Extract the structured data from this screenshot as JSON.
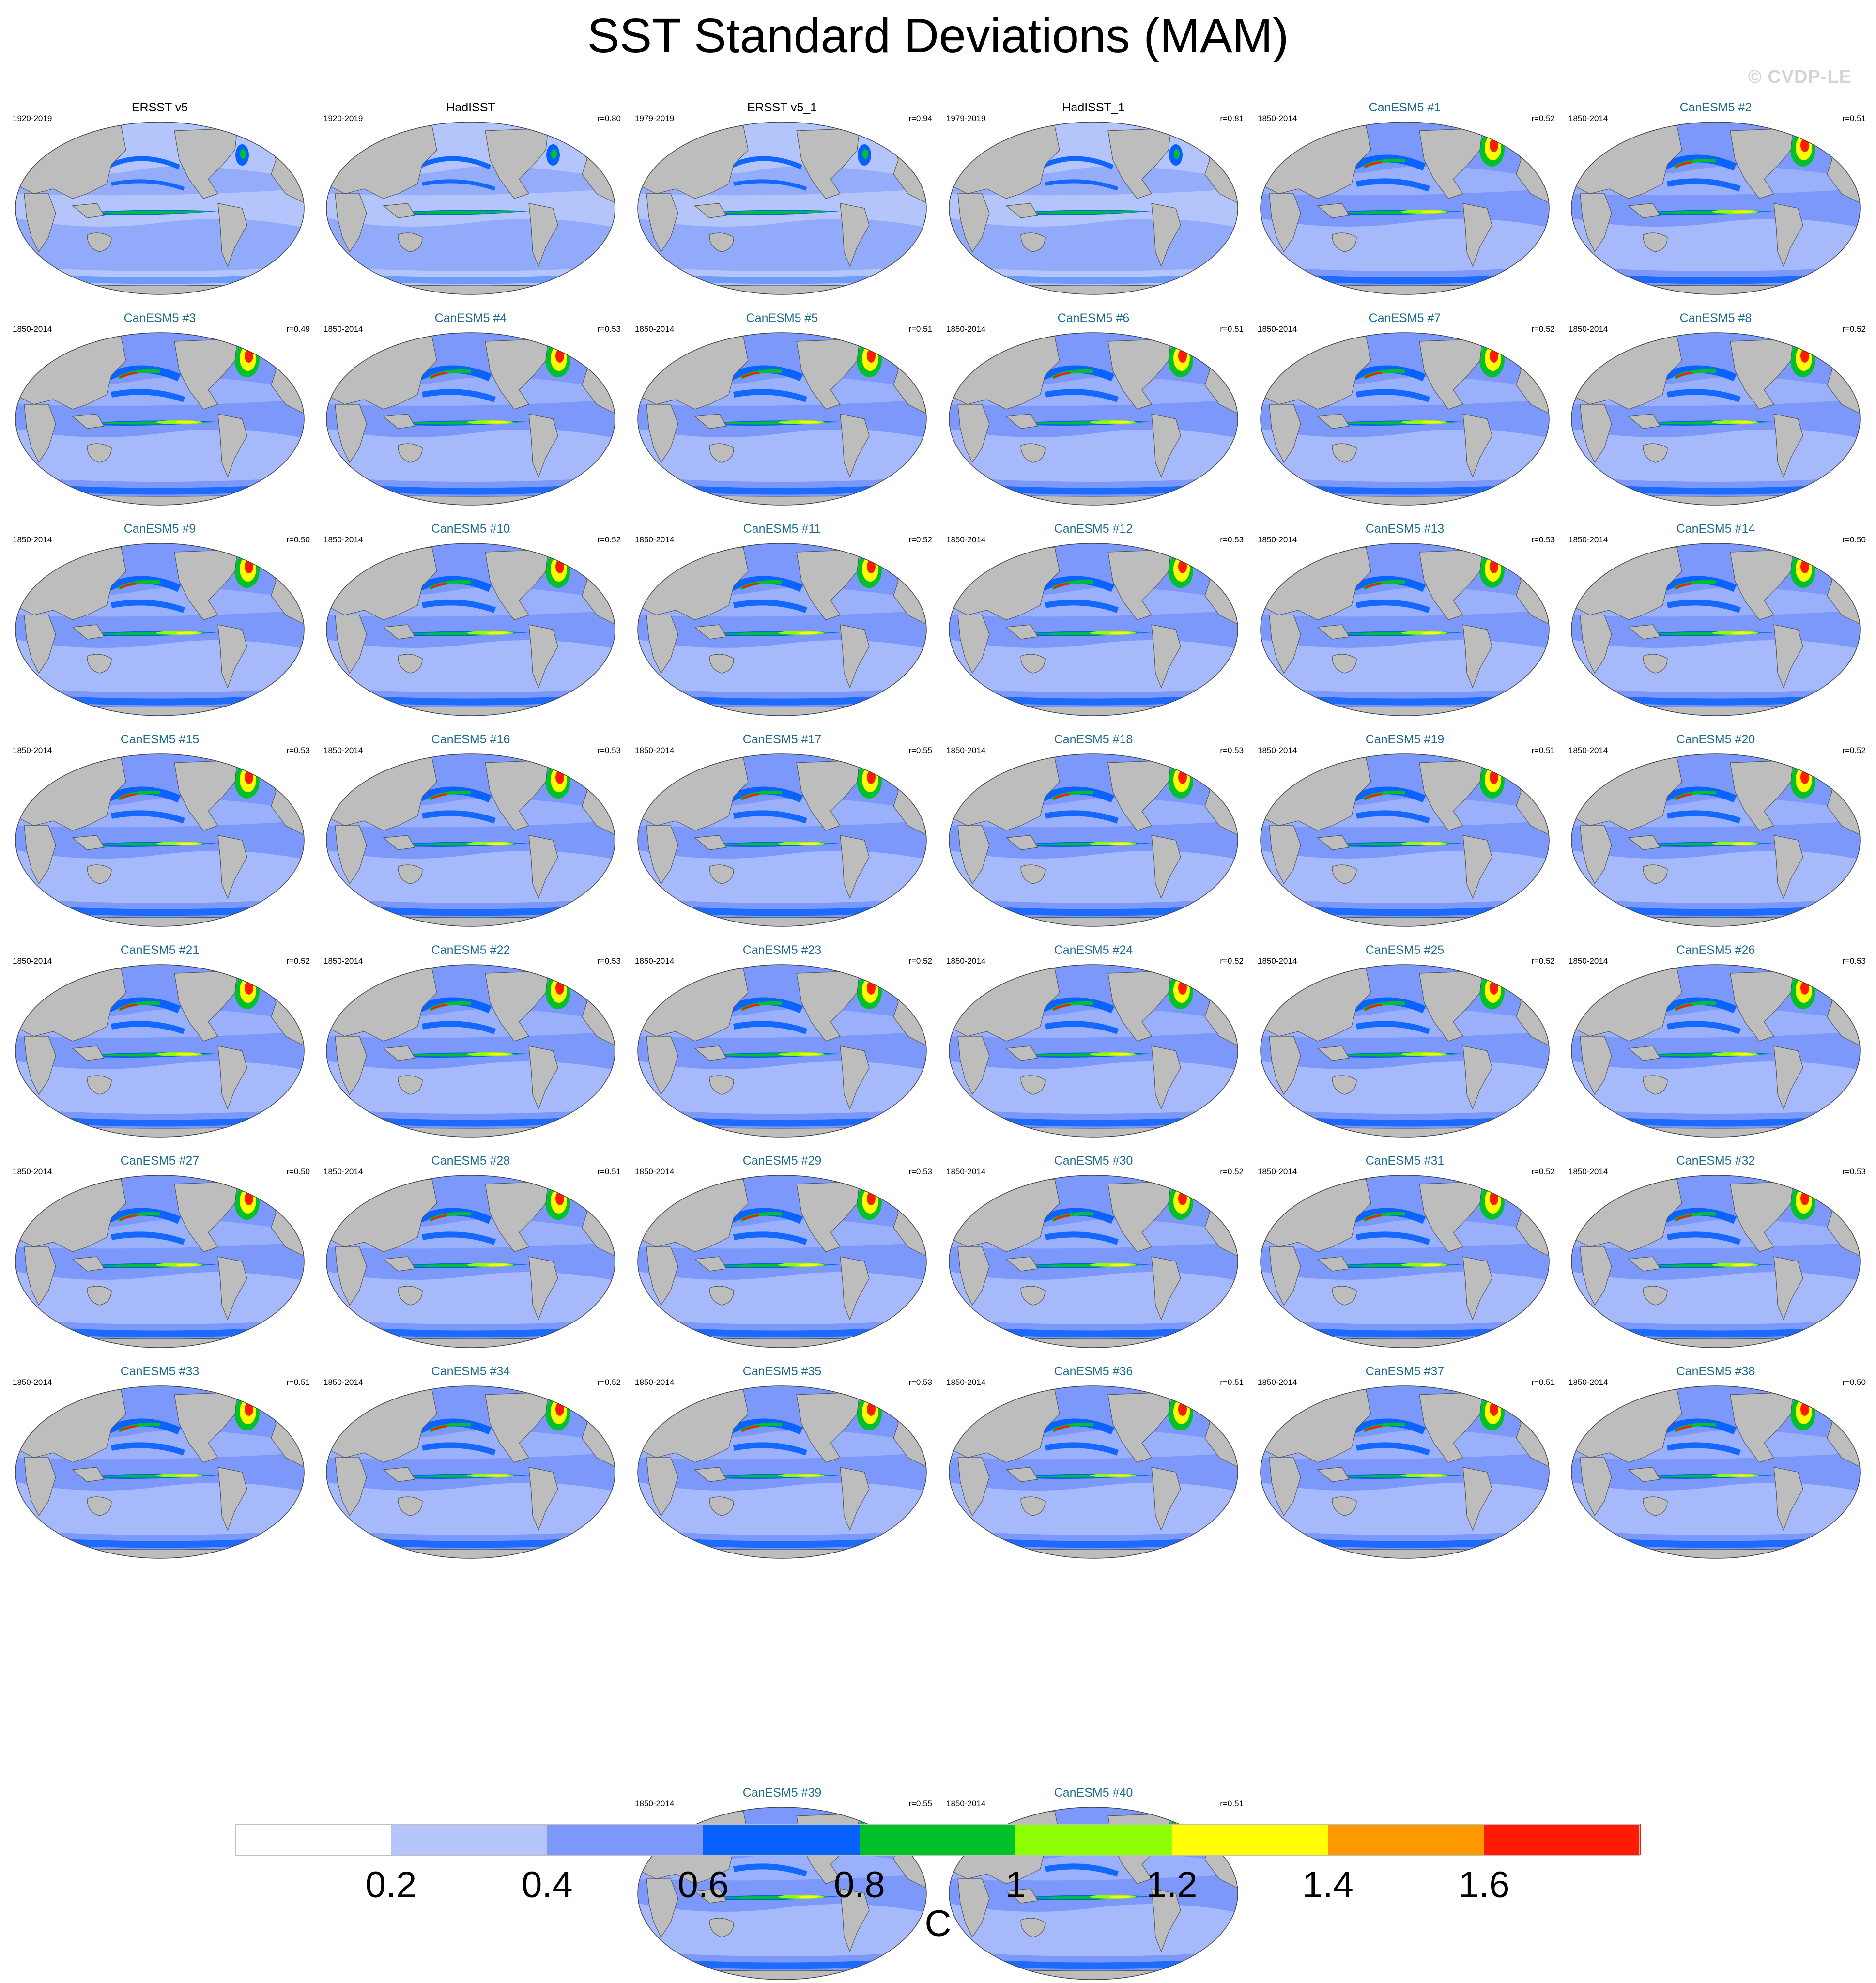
{
  "title": "SST Standard Deviations (MAM)",
  "watermark": "© CVDP-LE",
  "colorbar": {
    "unit": "C",
    "levels": [
      "0.2",
      "0.4",
      "0.6",
      "0.8",
      "1",
      "1.2",
      "1.4",
      "1.6"
    ],
    "colors": [
      "#ffffff",
      "#b4c5fb",
      "#7c98fa",
      "#0560ff",
      "#00c12c",
      "#8dff00",
      "#ffff00",
      "#ff9900",
      "#ff1a00"
    ]
  },
  "map_colors": {
    "land": "#bdbdbd",
    "coast": "#555555",
    "ocean_low": "#b4c5fb",
    "ocean_mid": "#7c98fa",
    "ocean_band": "#0560ff",
    "hot_green": "#00c12c",
    "hot_lime": "#8dff00",
    "hot_yellow": "#ffff00",
    "hot_red": "#ff1a00"
  },
  "panels": [
    {
      "title": "ERSST v5",
      "years": "1920-2019",
      "r": "",
      "kind": "obs"
    },
    {
      "title": "HadISST",
      "years": "1920-2019",
      "r": "r=0.80",
      "kind": "obs"
    },
    {
      "title": "ERSST v5_1",
      "years": "1979-2019",
      "r": "r=0.94",
      "kind": "obs"
    },
    {
      "title": "HadISST_1",
      "years": "1979-2019",
      "r": "r=0.81",
      "kind": "obs"
    },
    {
      "title": "CanESM5 #1",
      "years": "1850-2014",
      "r": "r=0.52",
      "kind": "model"
    },
    {
      "title": "CanESM5 #2",
      "years": "1850-2014",
      "r": "r=0.51",
      "kind": "model"
    },
    {
      "title": "CanESM5 #3",
      "years": "1850-2014",
      "r": "r=0.49",
      "kind": "model"
    },
    {
      "title": "CanESM5 #4",
      "years": "1850-2014",
      "r": "r=0.53",
      "kind": "model"
    },
    {
      "title": "CanESM5 #5",
      "years": "1850-2014",
      "r": "r=0.51",
      "kind": "model"
    },
    {
      "title": "CanESM5 #6",
      "years": "1850-2014",
      "r": "r=0.51",
      "kind": "model"
    },
    {
      "title": "CanESM5 #7",
      "years": "1850-2014",
      "r": "r=0.52",
      "kind": "model"
    },
    {
      "title": "CanESM5 #8",
      "years": "1850-2014",
      "r": "r=0.52",
      "kind": "model"
    },
    {
      "title": "CanESM5 #9",
      "years": "1850-2014",
      "r": "r=0.50",
      "kind": "model"
    },
    {
      "title": "CanESM5 #10",
      "years": "1850-2014",
      "r": "r=0.52",
      "kind": "model"
    },
    {
      "title": "CanESM5 #11",
      "years": "1850-2014",
      "r": "r=0.52",
      "kind": "model"
    },
    {
      "title": "CanESM5 #12",
      "years": "1850-2014",
      "r": "r=0.53",
      "kind": "model"
    },
    {
      "title": "CanESM5 #13",
      "years": "1850-2014",
      "r": "r=0.53",
      "kind": "model"
    },
    {
      "title": "CanESM5 #14",
      "years": "1850-2014",
      "r": "r=0.50",
      "kind": "model"
    },
    {
      "title": "CanESM5 #15",
      "years": "1850-2014",
      "r": "r=0.53",
      "kind": "model"
    },
    {
      "title": "CanESM5 #16",
      "years": "1850-2014",
      "r": "r=0.53",
      "kind": "model"
    },
    {
      "title": "CanESM5 #17",
      "years": "1850-2014",
      "r": "r=0.55",
      "kind": "model"
    },
    {
      "title": "CanESM5 #18",
      "years": "1850-2014",
      "r": "r=0.53",
      "kind": "model"
    },
    {
      "title": "CanESM5 #19",
      "years": "1850-2014",
      "r": "r=0.51",
      "kind": "model"
    },
    {
      "title": "CanESM5 #20",
      "years": "1850-2014",
      "r": "r=0.52",
      "kind": "model"
    },
    {
      "title": "CanESM5 #21",
      "years": "1850-2014",
      "r": "r=0.52",
      "kind": "model"
    },
    {
      "title": "CanESM5 #22",
      "years": "1850-2014",
      "r": "r=0.53",
      "kind": "model"
    },
    {
      "title": "CanESM5 #23",
      "years": "1850-2014",
      "r": "r=0.52",
      "kind": "model"
    },
    {
      "title": "CanESM5 #24",
      "years": "1850-2014",
      "r": "r=0.52",
      "kind": "model"
    },
    {
      "title": "CanESM5 #25",
      "years": "1850-2014",
      "r": "r=0.52",
      "kind": "model"
    },
    {
      "title": "CanESM5 #26",
      "years": "1850-2014",
      "r": "r=0.53",
      "kind": "model"
    },
    {
      "title": "CanESM5 #27",
      "years": "1850-2014",
      "r": "r=0.50",
      "kind": "model"
    },
    {
      "title": "CanESM5 #28",
      "years": "1850-2014",
      "r": "r=0.51",
      "kind": "model"
    },
    {
      "title": "CanESM5 #29",
      "years": "1850-2014",
      "r": "r=0.53",
      "kind": "model"
    },
    {
      "title": "CanESM5 #30",
      "years": "1850-2014",
      "r": "r=0.52",
      "kind": "model"
    },
    {
      "title": "CanESM5 #31",
      "years": "1850-2014",
      "r": "r=0.52",
      "kind": "model"
    },
    {
      "title": "CanESM5 #32",
      "years": "1850-2014",
      "r": "r=0.53",
      "kind": "model"
    },
    {
      "title": "CanESM5 #33",
      "years": "1850-2014",
      "r": "r=0.51",
      "kind": "model"
    },
    {
      "title": "CanESM5 #34",
      "years": "1850-2014",
      "r": "r=0.52",
      "kind": "model"
    },
    {
      "title": "CanESM5 #35",
      "years": "1850-2014",
      "r": "r=0.53",
      "kind": "model"
    },
    {
      "title": "CanESM5 #36",
      "years": "1850-2014",
      "r": "r=0.51",
      "kind": "model"
    },
    {
      "title": "CanESM5 #37",
      "years": "1850-2014",
      "r": "r=0.51",
      "kind": "model"
    },
    {
      "title": "CanESM5 #38",
      "years": "1850-2014",
      "r": "r=0.50",
      "kind": "model"
    },
    {
      "title": "CanESM5 #39",
      "years": "1850-2014",
      "r": "r=0.55",
      "kind": "model"
    },
    {
      "title": "CanESM5 #40",
      "years": "1850-2014",
      "r": "r=0.51",
      "kind": "model"
    }
  ]
}
